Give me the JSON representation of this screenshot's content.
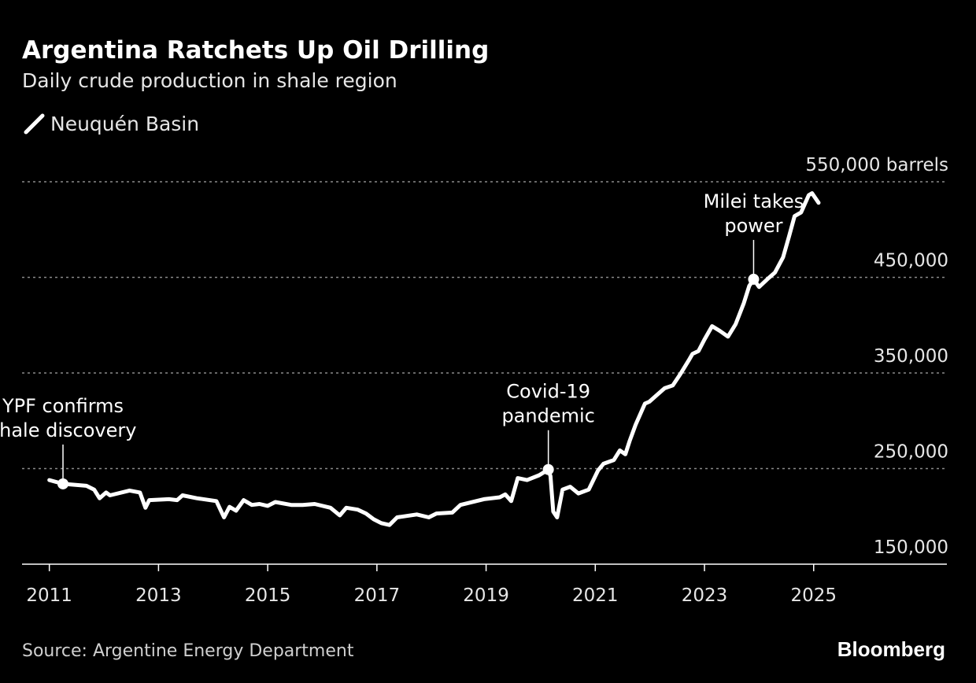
{
  "chart_data": {
    "type": "line",
    "title": "Argentina Ratchets Up Oil Drilling",
    "subtitle": "Daily crude production in shale region",
    "legend": {
      "position": "top-left",
      "entries": [
        "Neuquén Basin"
      ]
    },
    "source": "Source: Argentine Energy Department",
    "brand": "Bloomberg",
    "xlim": [
      2010.5,
      2027.44
    ],
    "ylim": [
      150000,
      550000
    ],
    "grid": "horizontal dashed",
    "x_ticks": [
      "2011",
      "2013",
      "2015",
      "2017",
      "2019",
      "2021",
      "2023",
      "2025"
    ],
    "y_ticks": [
      {
        "value": 550000,
        "label": "550,000 barrels"
      },
      {
        "value": 450000,
        "label": "450,000"
      },
      {
        "value": 350000,
        "label": "350,000"
      },
      {
        "value": 250000,
        "label": "250,000"
      },
      {
        "value": 150000,
        "label": "150,000"
      }
    ],
    "colors": {
      "background": "#000000",
      "line": "#ffffff",
      "grid": "#8a8a8a"
    },
    "series": [
      {
        "name": "Neuquén Basin",
        "x": [
          2011.0,
          2011.25,
          2011.68,
          2011.82,
          2011.92,
          2012.04,
          2012.11,
          2012.47,
          2012.66,
          2012.76,
          2012.83,
          2013.19,
          2013.34,
          2013.44,
          2013.7,
          2014.06,
          2014.2,
          2014.3,
          2014.42,
          2014.56,
          2014.71,
          2014.85,
          2015.0,
          2015.14,
          2015.43,
          2015.64,
          2015.86,
          2016.15,
          2016.32,
          2016.44,
          2016.65,
          2016.8,
          2016.94,
          2017.08,
          2017.23,
          2017.37,
          2017.73,
          2017.95,
          2018.09,
          2018.38,
          2018.53,
          2018.96,
          2019.25,
          2019.35,
          2019.46,
          2019.58,
          2019.75,
          2019.97,
          2020.14,
          2020.18,
          2020.23,
          2020.3,
          2020.4,
          2020.54,
          2020.69,
          2020.88,
          2021.05,
          2021.15,
          2021.34,
          2021.45,
          2021.55,
          2021.63,
          2021.74,
          2021.91,
          2021.99,
          2022.13,
          2022.27,
          2022.42,
          2022.56,
          2022.71,
          2022.78,
          2022.89,
          2023.0,
          2023.14,
          2023.28,
          2023.43,
          2023.57,
          2023.72,
          2023.82,
          2023.9,
          2024.0,
          2024.15,
          2024.29,
          2024.44,
          2024.55,
          2024.65,
          2024.77,
          2024.91,
          2024.97,
          2025.09
        ],
        "y": [
          238000,
          234000,
          232000,
          228000,
          219000,
          225000,
          222000,
          227000,
          225000,
          209000,
          217000,
          218000,
          217000,
          222000,
          219000,
          216000,
          199000,
          210000,
          206000,
          217000,
          212000,
          213000,
          211000,
          215000,
          212000,
          212000,
          213000,
          209000,
          201000,
          209000,
          207000,
          203000,
          197000,
          193000,
          191000,
          199000,
          202000,
          199000,
          203000,
          204000,
          212000,
          218000,
          220000,
          223000,
          216000,
          240000,
          238000,
          243000,
          249000,
          242000,
          205000,
          199000,
          228000,
          231000,
          224000,
          228000,
          248000,
          255000,
          259000,
          269000,
          265000,
          279000,
          296000,
          318000,
          320000,
          327000,
          334000,
          337000,
          349000,
          363000,
          370000,
          373000,
          385000,
          399000,
          394000,
          388000,
          401000,
          423000,
          441000,
          448000,
          440000,
          448000,
          455000,
          471000,
          493000,
          514000,
          518000,
          536000,
          538000,
          528000
        ]
      }
    ],
    "annotations": [
      {
        "x": 2011.25,
        "y": 234000,
        "lines": [
          "YPF confirms",
          "shale discovery"
        ]
      },
      {
        "x": 2020.14,
        "y": 249000,
        "lines": [
          "Covid-19",
          "pandemic"
        ]
      },
      {
        "x": 2023.9,
        "y": 448000,
        "lines": [
          "Milei takes",
          "power"
        ]
      }
    ]
  }
}
